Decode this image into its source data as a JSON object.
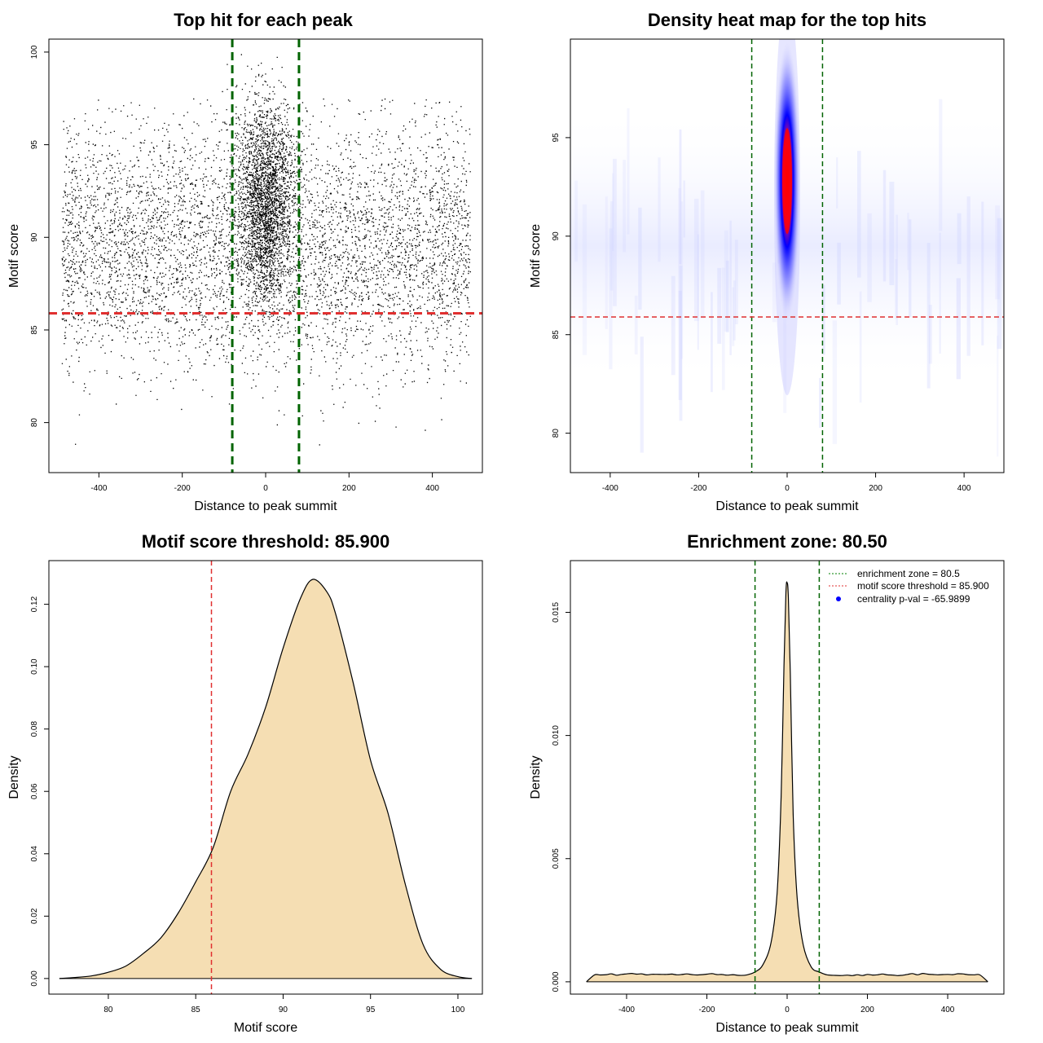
{
  "colors": {
    "green_line": "#006400",
    "red_line": "#e03030",
    "fill": "#f5deb3",
    "points": "#000000",
    "heat_low": "#ffffff",
    "heat_mid": "#0000ff",
    "heat_high": "#ff0000",
    "legend_point": "#0000ff"
  },
  "chart_data": [
    {
      "type": "scatter",
      "title": "Top hit for each peak",
      "xlabel": "Distance to peak summit",
      "ylabel": "Motif score",
      "xlim": [
        -520,
        520
      ],
      "ylim": [
        77.3,
        100.7
      ],
      "xticks": [
        "-400",
        "-200",
        "0",
        "200",
        "400"
      ],
      "yticks": [
        "80",
        "85",
        "90",
        "95",
        "100"
      ],
      "vlines": [
        -80,
        80
      ],
      "hline": 85.9,
      "point_count_estimate": 20000,
      "background": {
        "x_range": [
          -490,
          490
        ],
        "y_center": 89.5,
        "y_sd": 3.2
      },
      "central_cluster": {
        "x_center": 0,
        "x_sd": 22,
        "y_center": 92,
        "y_sd": 2.6
      }
    },
    {
      "type": "heatmap",
      "title": "Density heat map for the top hits",
      "xlabel": "Distance to peak summit",
      "ylabel": "Motif score",
      "xlim": [
        -490,
        490
      ],
      "ylim": [
        78,
        100
      ],
      "xticks": [
        "-400",
        "-200",
        "0",
        "200",
        "400"
      ],
      "yticks": [
        "80",
        "85",
        "90",
        "95"
      ],
      "vlines": [
        -80,
        80
      ],
      "hline": 85.9,
      "peak": {
        "x": 0,
        "y": 92.8
      }
    },
    {
      "type": "area",
      "title": "Motif score threshold: 85.900",
      "xlabel": "Motif score",
      "ylabel": "Density",
      "xlim": [
        76.6,
        101.4
      ],
      "ylim": [
        -0.005,
        0.134
      ],
      "xticks": [
        "80",
        "85",
        "90",
        "95",
        "100"
      ],
      "yticks": [
        "0.00",
        "0.02",
        "0.04",
        "0.06",
        "0.08",
        "0.10",
        "0.12"
      ],
      "vline": 85.9,
      "x": [
        77.2,
        78,
        79,
        80,
        81,
        82,
        83,
        84,
        85,
        86,
        87,
        88,
        89,
        90,
        91,
        91.7,
        92.5,
        93,
        94,
        95,
        96,
        97,
        98,
        99,
        100,
        100.8
      ],
      "y": [
        0.0,
        0.0003,
        0.0008,
        0.002,
        0.004,
        0.008,
        0.013,
        0.021,
        0.031,
        0.042,
        0.06,
        0.072,
        0.087,
        0.106,
        0.122,
        0.128,
        0.124,
        0.117,
        0.095,
        0.07,
        0.053,
        0.03,
        0.011,
        0.003,
        0.0006,
        0.0
      ]
    },
    {
      "type": "area",
      "title": "Enrichment zone: 80.50",
      "xlabel": "Distance to peak summit",
      "ylabel": "Density",
      "xlim": [
        -540,
        540
      ],
      "ylim": [
        -0.0005,
        0.0171
      ],
      "xticks": [
        "-400",
        "-200",
        "0",
        "200",
        "400"
      ],
      "yticks": [
        "0.000",
        "0.005",
        "0.010",
        "0.015"
      ],
      "vlines": [
        -80,
        80
      ],
      "x": [
        -500,
        -480,
        -450,
        -400,
        -350,
        -300,
        -250,
        -200,
        -150,
        -120,
        -100,
        -80,
        -60,
        -40,
        -25,
        -15,
        -8,
        -3,
        0,
        3,
        8,
        15,
        25,
        40,
        60,
        80,
        100,
        120,
        150,
        200,
        250,
        300,
        350,
        400,
        450,
        480,
        500
      ],
      "y": [
        0.0,
        0.00028,
        0.00029,
        0.00032,
        0.00028,
        0.0003,
        0.00032,
        0.00031,
        0.00027,
        0.00026,
        0.00028,
        0.0004,
        0.0007,
        0.0016,
        0.0036,
        0.0075,
        0.0128,
        0.0158,
        0.0162,
        0.0156,
        0.0125,
        0.0068,
        0.0034,
        0.0015,
        0.0006,
        0.0004,
        0.00028,
        0.00026,
        0.00027,
        0.0003,
        0.00028,
        0.0003,
        0.00031,
        0.0003,
        0.00029,
        0.00028,
        0.0
      ],
      "legend": [
        {
          "label": "enrichment zone = 80.5",
          "style": "green-dotted"
        },
        {
          "label": "motif score threshold = 85.900",
          "style": "red-dotted"
        },
        {
          "label": "centrality p-val = -65.9899",
          "style": "blue-point"
        }
      ],
      "legend_position": "top-right"
    }
  ]
}
